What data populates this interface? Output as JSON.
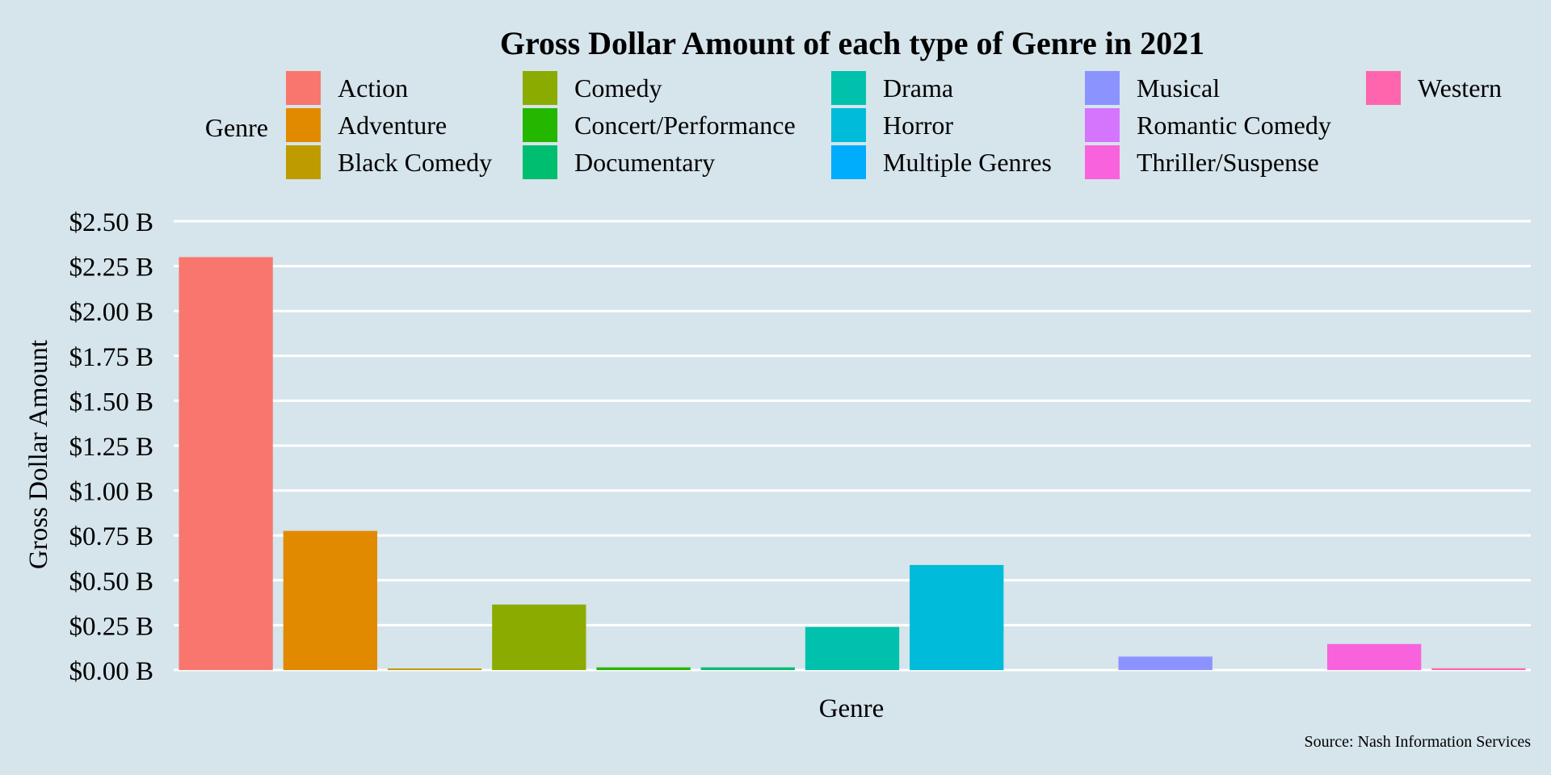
{
  "chart_data": {
    "type": "bar",
    "title": "Gross Dollar Amount of each type of Genre in 2021",
    "xlabel": "Genre",
    "ylabel": "Gross Dollar Amount",
    "caption": "Source: Nash Information Services",
    "legend_title": "Genre",
    "legend_placement": "top",
    "ylim": [
      0,
      2.5
    ],
    "yticks": [
      0,
      0.25,
      0.5,
      0.75,
      1.0,
      1.25,
      1.5,
      1.75,
      2.0,
      2.25,
      2.5
    ],
    "ytick_labels": [
      "$0.00 B",
      "$0.25 B",
      "$0.50 B",
      "$0.75 B",
      "$1.00 B",
      "$1.25 B",
      "$1.50 B",
      "$1.75 B",
      "$2.00 B",
      "$2.25 B",
      "$2.50 B"
    ],
    "grid": true,
    "categories": [
      "Action",
      "Adventure",
      "Black Comedy",
      "Comedy",
      "Concert/Performance",
      "Documentary",
      "Drama",
      "Horror",
      "Multiple Genres",
      "Musical",
      "Romantic Comedy",
      "Thriller/Suspense",
      "Western"
    ],
    "values": [
      2.3,
      0.775,
      0.008,
      0.365,
      0.015,
      0.015,
      0.24,
      0.585,
      0.0,
      0.075,
      0.0,
      0.145,
      0.01
    ],
    "colors": [
      "#F8766D",
      "#E18A00",
      "#BE9C00",
      "#8CAB00",
      "#24B700",
      "#00BE70",
      "#00C1AB",
      "#00BBDA",
      "#00ACFC",
      "#8B93FF",
      "#D575FE",
      "#F962DD",
      "#FF65AC"
    ],
    "unit": "billions USD"
  }
}
